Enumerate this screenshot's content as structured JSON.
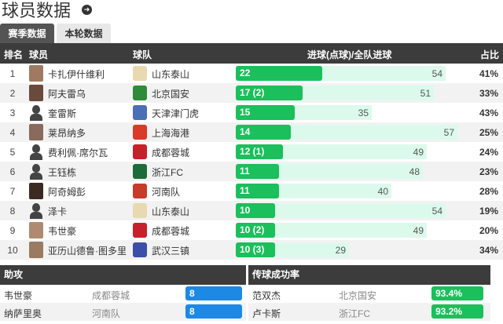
{
  "header": {
    "title": "球员数据",
    "arrow_icon": "➜"
  },
  "tabs": [
    {
      "label": "赛季数据",
      "active": true
    },
    {
      "label": "本轮数据",
      "active": false
    }
  ],
  "table": {
    "columns": {
      "rank": "排名",
      "player": "球员",
      "team": "球队",
      "goals": "进球(点球)/全队进球",
      "ratio": "占比"
    },
    "rows": [
      {
        "rank": "1",
        "player": "卡扎伊什维利",
        "team": "山东泰山",
        "goals": "22",
        "team_goals": "54",
        "pct": "41%",
        "badge": "#e8d9b0",
        "avatar": "#a07a60",
        "sil": false
      },
      {
        "rank": "2",
        "player": "阿夫雷乌",
        "team": "北京国安",
        "goals": "17 (2)",
        "team_goals": "51",
        "pct": "33%",
        "badge": "#2e8b3a",
        "avatar": "#6a4a3a",
        "sil": false
      },
      {
        "rank": "3",
        "player": "奎雷斯",
        "team": "天津津门虎",
        "goals": "15",
        "team_goals": "35",
        "pct": "43%",
        "badge": "#4a6fb5",
        "avatar": "",
        "sil": true
      },
      {
        "rank": "4",
        "player": "莱昂纳多",
        "team": "上海海港",
        "goals": "14",
        "team_goals": "57",
        "pct": "25%",
        "badge": "#d93a2a",
        "avatar": "#8a6a5a",
        "sil": false
      },
      {
        "rank": "5",
        "player": "费利佩·席尔瓦",
        "team": "成都蓉城",
        "goals": "12 (1)",
        "team_goals": "49",
        "pct": "24%",
        "badge": "#c8202a",
        "avatar": "",
        "sil": true
      },
      {
        "rank": "6",
        "player": "王钰栋",
        "team": "浙江FC",
        "goals": "11",
        "team_goals": "48",
        "pct": "23%",
        "badge": "#1e6b3a",
        "avatar": "",
        "sil": true
      },
      {
        "rank": "7",
        "player": "阿奇姆彭",
        "team": "河南队",
        "goals": "11",
        "team_goals": "40",
        "pct": "28%",
        "badge": "#c83a2a",
        "avatar": "#3a2a22",
        "sil": false
      },
      {
        "rank": "8",
        "player": "泽卡",
        "team": "山东泰山",
        "goals": "10",
        "team_goals": "54",
        "pct": "19%",
        "badge": "#e8d9b0",
        "avatar": "",
        "sil": true
      },
      {
        "rank": "9",
        "player": "韦世豪",
        "team": "成都蓉城",
        "goals": "10 (2)",
        "team_goals": "49",
        "pct": "20%",
        "badge": "#c8202a",
        "avatar": "#b08a70",
        "sil": false
      },
      {
        "rank": "10",
        "player": "亚历山德鲁·图多里",
        "team": "武汉三镇",
        "goals": "10 (3)",
        "team_goals": "29",
        "pct": "34%",
        "badge": "#3a4fa5",
        "avatar": "#9a7a60",
        "sil": false
      }
    ]
  },
  "assists": {
    "title": "助攻",
    "color": "#1e88e5",
    "rows": [
      {
        "player": "韦世豪",
        "team": "成都蓉城",
        "value": "8"
      },
      {
        "player": "纳萨里奥",
        "team": "河南队",
        "value": "8"
      }
    ]
  },
  "passing": {
    "title": "传球成功率",
    "color": "#1bbf5b",
    "rows": [
      {
        "player": "范双杰",
        "team": "北京国安",
        "value": "93.4%"
      },
      {
        "player": "卢卡斯",
        "team": "浙江FC",
        "value": "93.2%"
      }
    ]
  }
}
